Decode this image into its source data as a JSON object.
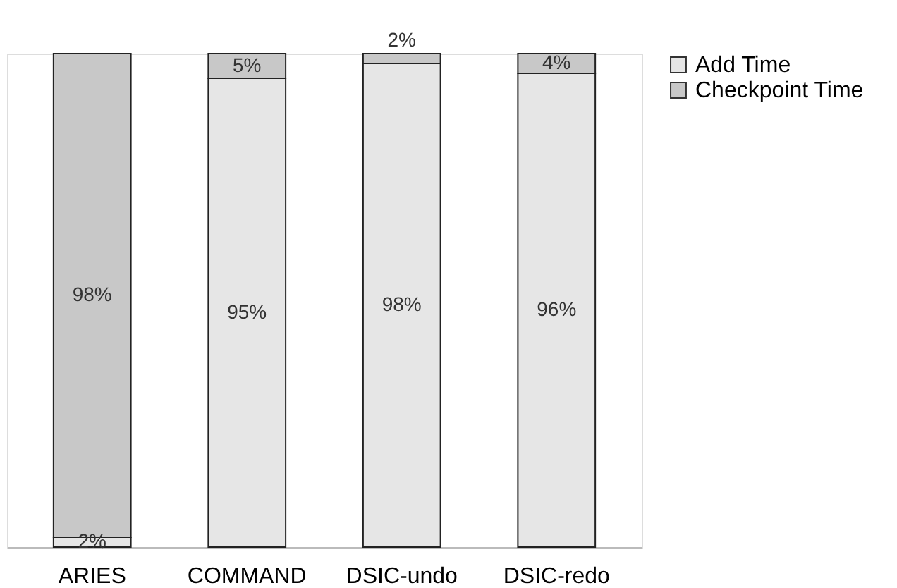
{
  "chart_data": {
    "type": "bar",
    "stacked": true,
    "legend": "top right",
    "categories": [
      "ARIES",
      "COMMAND",
      "DSIC-undo",
      "DSIC-redo"
    ],
    "series": [
      {
        "name": "Add Time",
        "color": "#e6e6e6",
        "values": [
          2,
          95,
          98,
          96
        ],
        "value_labels": [
          "2%",
          "95%",
          "98%",
          "96%"
        ]
      },
      {
        "name": "Checkpoint Time",
        "color": "#c8c8c8",
        "values": [
          98,
          5,
          2,
          4
        ],
        "value_labels": [
          "98%",
          "5%",
          "2%",
          "4%"
        ]
      }
    ]
  }
}
